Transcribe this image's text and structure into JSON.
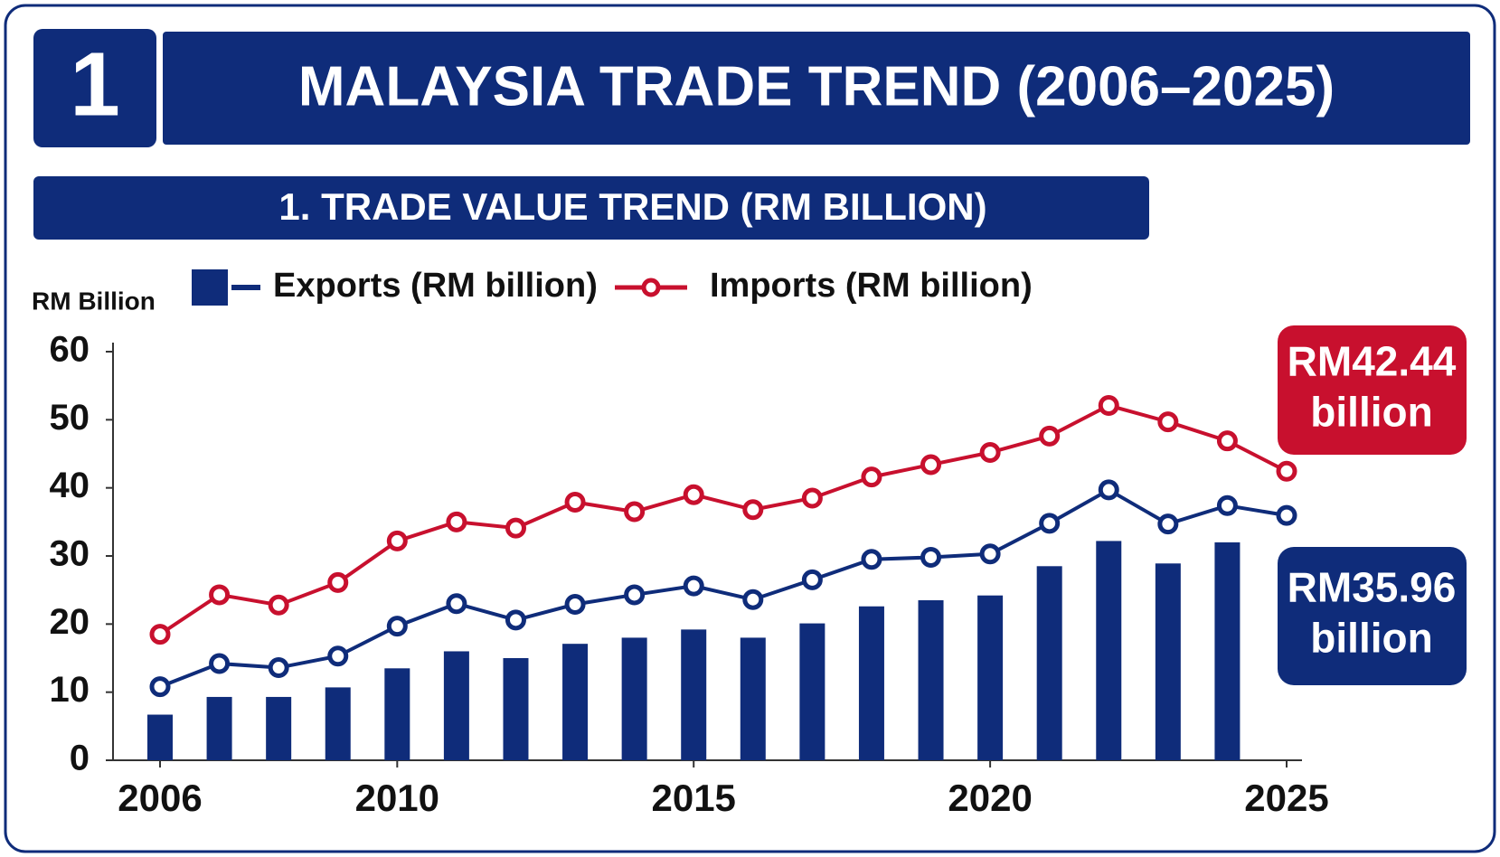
{
  "badge": "1",
  "chart_data": {
    "type": "bar-line",
    "title": "MALAYSIA TRADE TREND (2006–2025)",
    "subtitle": "1. TRADE VALUE TREND (RM BILLION)",
    "y_label": "RM Billion",
    "x": [
      2006,
      2007,
      2008,
      2009,
      2010,
      2011,
      2012,
      2013,
      2014,
      2015,
      2016,
      2017,
      2018,
      2019,
      2020,
      2021,
      2022,
      2023,
      2024,
      2025
    ],
    "xlim": [
      2006,
      2025
    ],
    "xticks": [
      2006,
      2010,
      2015,
      2020,
      2025
    ],
    "ylim": [
      0,
      60
    ],
    "yticks": [
      0,
      10,
      20,
      30,
      40,
      50,
      60
    ],
    "bars": {
      "color": "#0f2c7a",
      "values": [
        6.7,
        9.3,
        9.3,
        10.7,
        13.5,
        16,
        15,
        17.1,
        18,
        19.2,
        18,
        20.1,
        22.6,
        23.5,
        24.2,
        28.5,
        32.2,
        28.9,
        32,
        null
      ]
    },
    "series": [
      {
        "name": "Exports (RM billion)",
        "color": "#0f2c7a",
        "values": [
          10.8,
          14.2,
          13.6,
          15.3,
          19.7,
          23,
          20.6,
          22.9,
          24.3,
          25.6,
          23.6,
          26.5,
          29.5,
          29.8,
          30.3,
          34.8,
          39.7,
          34.7,
          37.4,
          35.96
        ]
      },
      {
        "name": "Imports (RM billion)",
        "color": "#c8102e",
        "values": [
          18.5,
          24.3,
          22.8,
          26.1,
          32.2,
          35,
          34.1,
          37.9,
          36.5,
          39,
          36.8,
          38.5,
          41.6,
          43.4,
          45.2,
          47.6,
          52.1,
          49.7,
          46.9,
          42.44
        ]
      }
    ],
    "callouts": [
      {
        "lines": [
          "RM42.44",
          "billion"
        ],
        "color": "#c8102e"
      },
      {
        "lines": [
          "RM35.96",
          "billion"
        ],
        "color": "#0f2c7a"
      }
    ]
  }
}
